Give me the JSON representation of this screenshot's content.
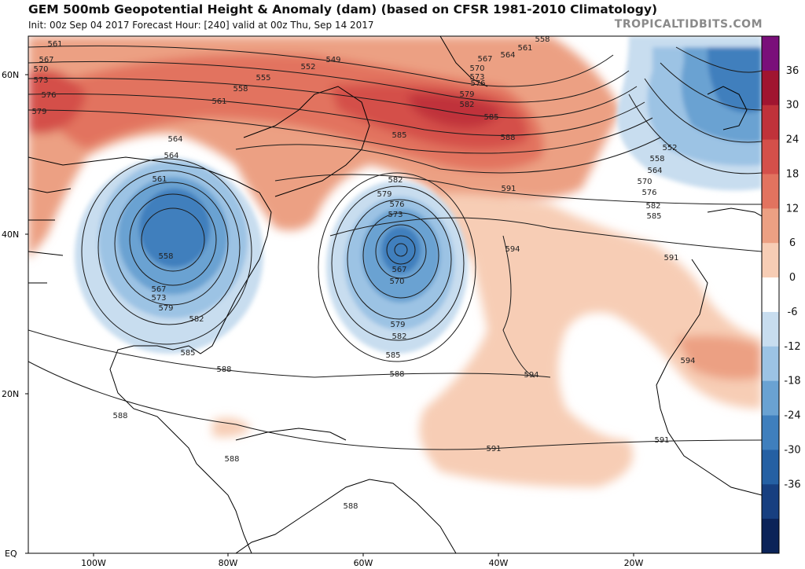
{
  "header": {
    "title": "GEM 500mb Geopotential Height & Anomaly (dam) (based on CFSR 1981-2010 Climatology)",
    "subtitle": "Init: 00z Sep 04 2017   Forecast Hour: [240]   valid at 00z Thu, Sep 14 2017",
    "brand": "TROPICALTIDBITS.COM"
  },
  "axes": {
    "lat_labels": [
      "60N",
      "40N",
      "20N",
      "EQ"
    ],
    "lon_labels": [
      "100W",
      "80W",
      "60W",
      "40W",
      "20W"
    ]
  },
  "colorbar": {
    "ticks": [
      "36",
      "30",
      "24",
      "18",
      "12",
      "6",
      "0",
      "-6",
      "-12",
      "-18",
      "-24",
      "-30",
      "-36"
    ],
    "colors": [
      "#7a0f7a",
      "#a01530",
      "#c0323a",
      "#d4504a",
      "#e2735f",
      "#eca083",
      "#f7cdb5",
      "#ffffff",
      "#c8ddef",
      "#9cc3e4",
      "#6aa2d2",
      "#3f7fbd",
      "#2560a3",
      "#173f80",
      "#0b2358"
    ]
  },
  "contour_labels": [
    "561",
    "567",
    "570",
    "573",
    "576",
    "579",
    "549",
    "552",
    "555",
    "558",
    "561",
    "558",
    "561",
    "564",
    "567",
    "570",
    "573",
    "576",
    "579",
    "582",
    "585",
    "588",
    "585",
    "564",
    "564",
    "561",
    "558",
    "567",
    "573",
    "579",
    "582",
    "585",
    "582",
    "579",
    "576",
    "573",
    "567",
    "570",
    "579",
    "582",
    "585",
    "588",
    "591",
    "594",
    "594",
    "591",
    "552",
    "558",
    "564",
    "570",
    "576",
    "582",
    "585",
    "591",
    "594",
    "591",
    "588",
    "588",
    "588",
    "588"
  ],
  "legend_colors": {
    "positive_anomaly": "#d4504a",
    "negative_anomaly": "#3f7fbd",
    "land_outline": "#000000",
    "contour": "#1a1a1a"
  }
}
